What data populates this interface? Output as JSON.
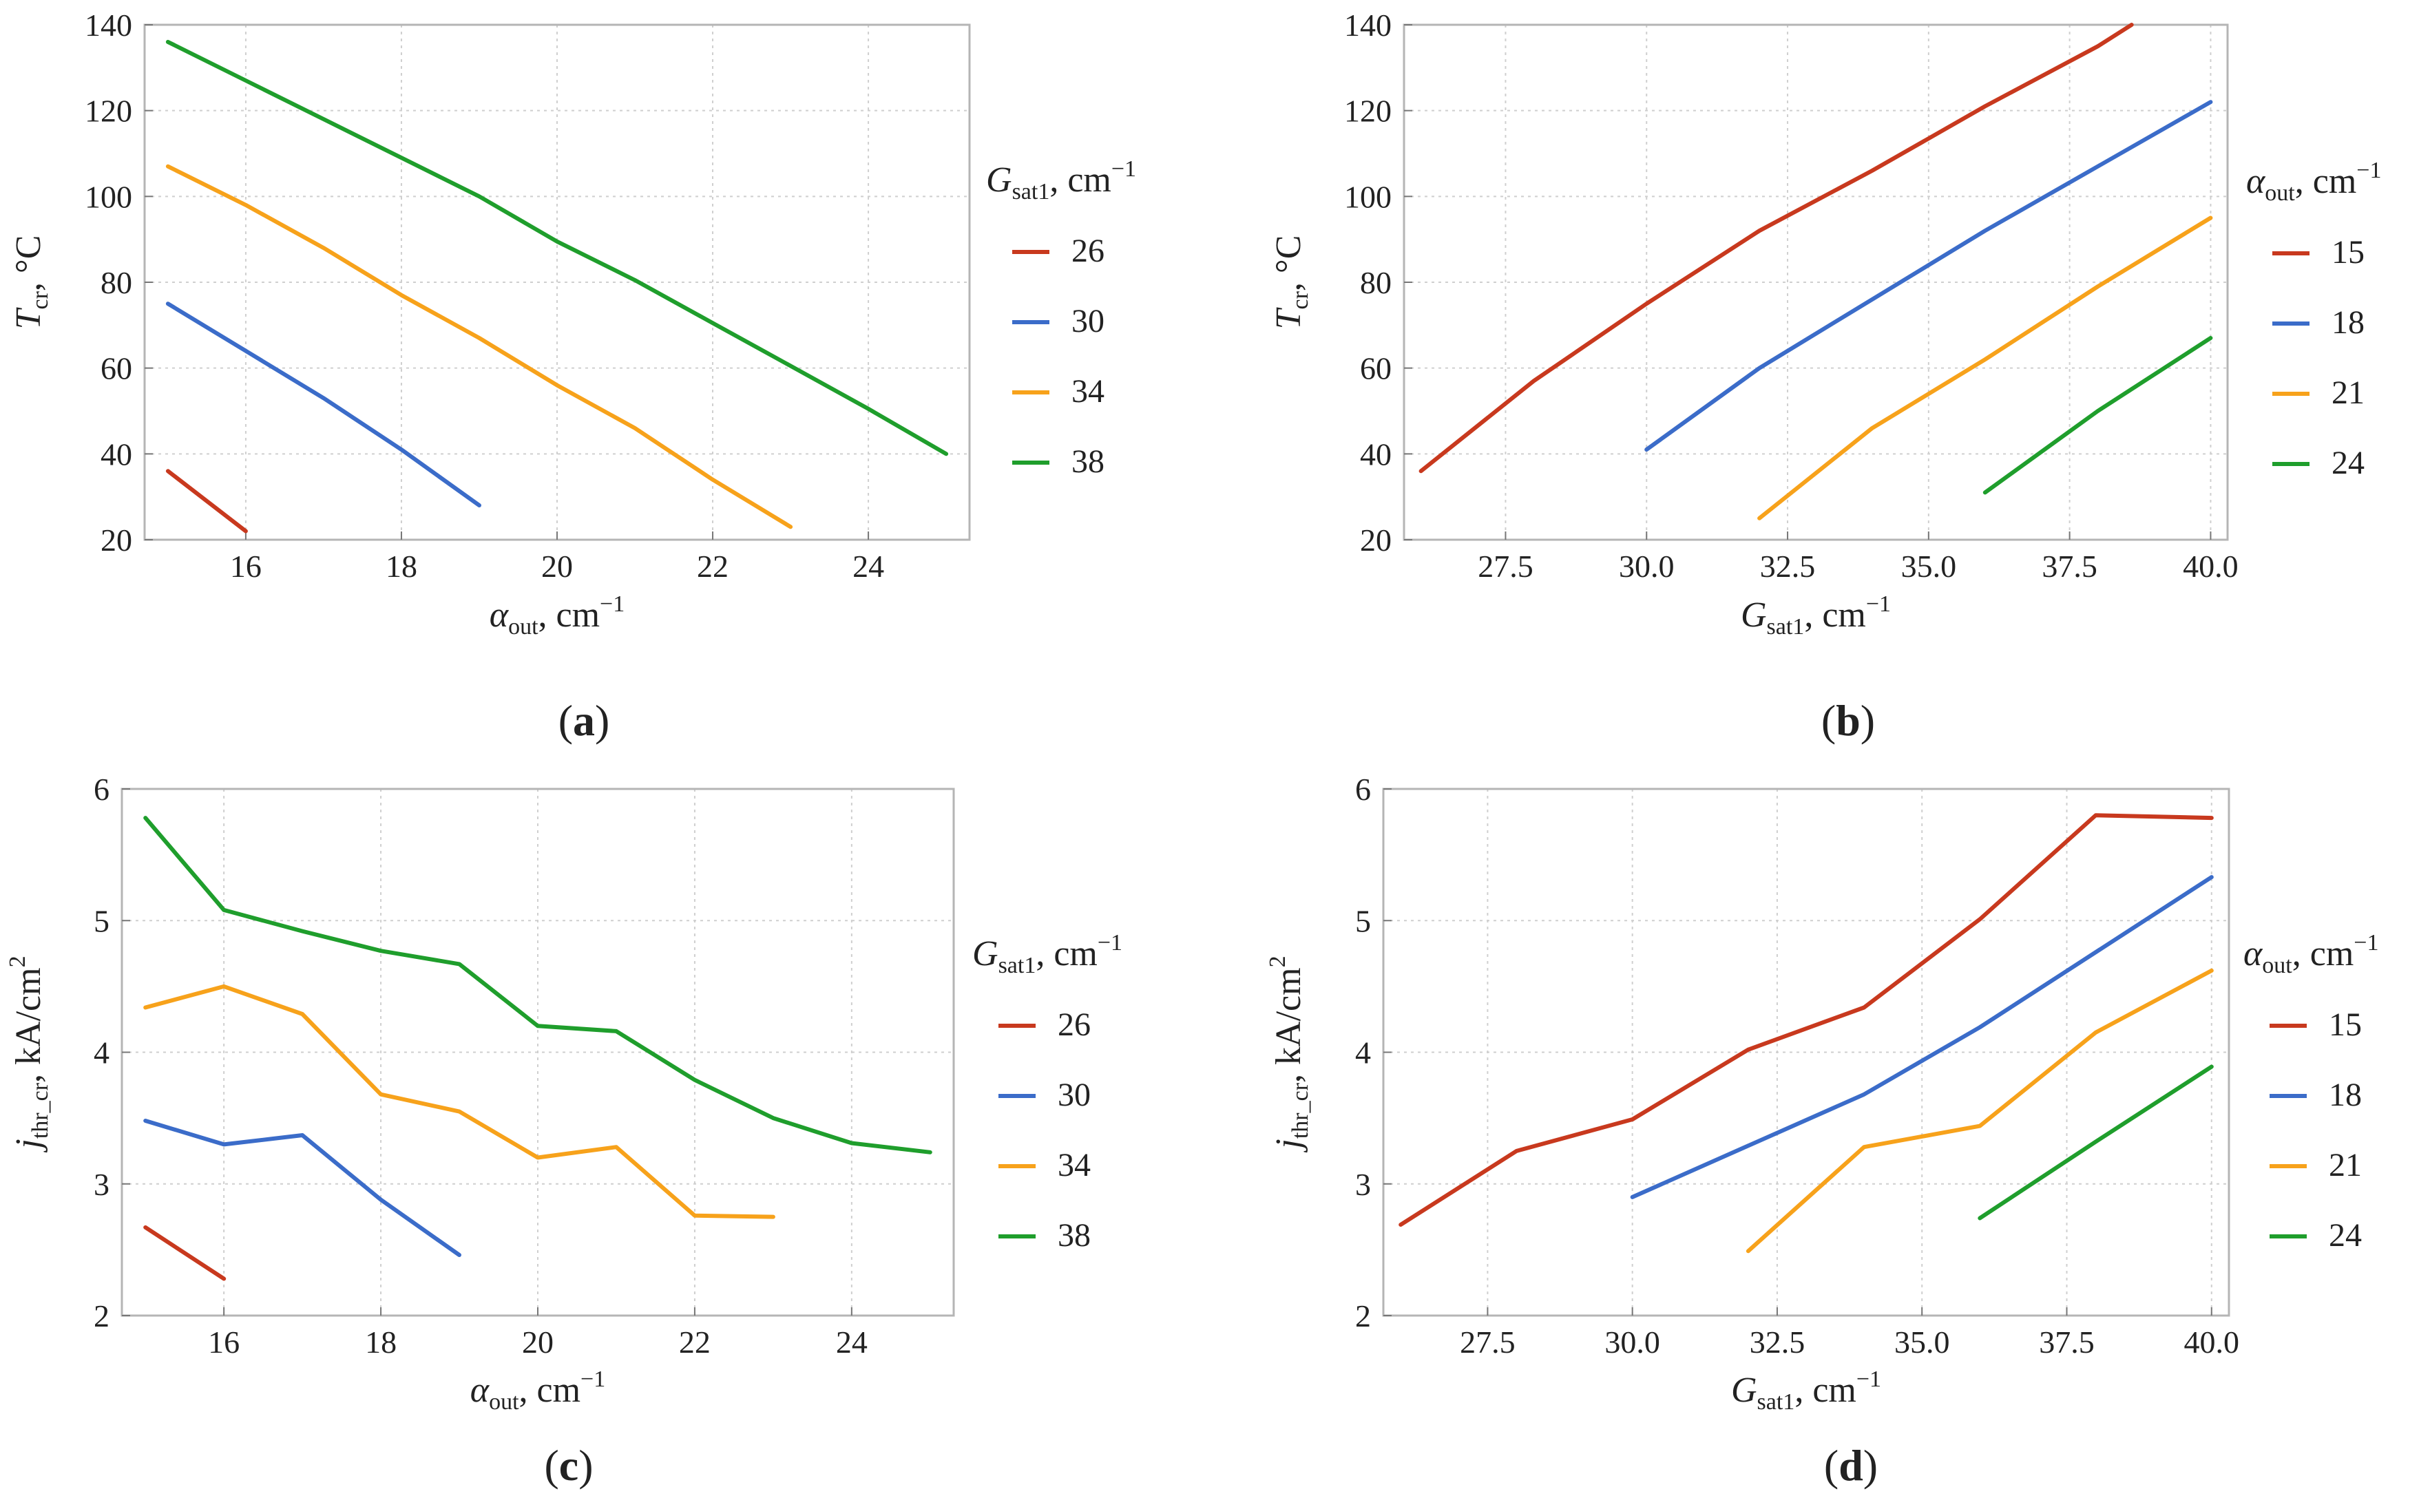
{
  "colors": {
    "red": "#c8391e",
    "blue": "#3b6cc9",
    "orange": "#f7a21b",
    "green": "#1f9e2c",
    "grid": "#cfcfcf",
    "frame": "#b5b5b5"
  },
  "chart_data": [
    {
      "type": "line",
      "panel_label": "(a)",
      "ylabel_main": "T",
      "ylabel_sub": "cr",
      "ylabel_tail": ", °C",
      "xlabel_main": "α",
      "xlabel_sub": "out",
      "xlabel_tail": ", cm",
      "xlabel_sup": "−1",
      "xlim": [
        14.7,
        25.3
      ],
      "ylim": [
        20,
        140
      ],
      "xticks": [
        16,
        18,
        20,
        22,
        24
      ],
      "xtick_labels": [
        "16",
        "18",
        "20",
        "22",
        "24"
      ],
      "yticks": [
        20,
        40,
        60,
        80,
        100,
        120,
        140
      ],
      "ytick_labels": [
        "20",
        "40",
        "60",
        "80",
        "100",
        "120",
        "140"
      ],
      "legend": {
        "title_main": "G",
        "title_sub": "sat1",
        "title_tail": ", cm",
        "title_sup": "−1"
      },
      "series": [
        {
          "name": "26",
          "color": "red",
          "x": [
            15,
            16
          ],
          "y": [
            36,
            22
          ]
        },
        {
          "name": "30",
          "color": "blue",
          "x": [
            15,
            16,
            17,
            18,
            19
          ],
          "y": [
            75,
            64,
            53,
            41,
            28
          ]
        },
        {
          "name": "34",
          "color": "orange",
          "x": [
            15,
            16,
            17,
            18,
            19,
            20,
            21,
            22,
            23
          ],
          "y": [
            107,
            98,
            88,
            77,
            67,
            56,
            46,
            34,
            23
          ]
        },
        {
          "name": "38",
          "color": "green",
          "x": [
            15,
            16,
            17,
            18,
            19,
            20,
            21,
            22,
            23,
            24,
            25
          ],
          "y": [
            136,
            127,
            118,
            109,
            100,
            89.5,
            80.5,
            70.5,
            60.5,
            50.5,
            40
          ]
        }
      ]
    },
    {
      "type": "line",
      "panel_label": "(b)",
      "ylabel_main": "T",
      "ylabel_sub": "cr",
      "ylabel_tail": ", °C",
      "xlabel_main": "G",
      "xlabel_sub": "sat1",
      "xlabel_tail": ", cm",
      "xlabel_sup": "−1",
      "xlim": [
        25.7,
        40.3
      ],
      "ylim": [
        20,
        140
      ],
      "xticks": [
        27.5,
        30,
        32.5,
        35,
        37.5,
        40
      ],
      "xtick_labels": [
        "27.5",
        "30.0",
        "32.5",
        "35.0",
        "37.5",
        "40.0"
      ],
      "yticks": [
        20,
        40,
        60,
        80,
        100,
        120,
        140
      ],
      "ytick_labels": [
        "20",
        "40",
        "60",
        "80",
        "100",
        "120",
        "140"
      ],
      "legend": {
        "title_main": "α",
        "title_sub": "out",
        "title_tail": ", cm",
        "title_sup": "−1"
      },
      "series": [
        {
          "name": "15",
          "color": "red",
          "x": [
            26,
            28,
            30,
            32,
            34,
            36,
            38,
            38.6
          ],
          "y": [
            36,
            57,
            75,
            92,
            106,
            121,
            135,
            140
          ]
        },
        {
          "name": "18",
          "color": "blue",
          "x": [
            30,
            32,
            34,
            36,
            38,
            40
          ],
          "y": [
            41,
            60,
            76,
            92,
            107,
            122
          ]
        },
        {
          "name": "21",
          "color": "orange",
          "x": [
            32,
            34,
            36,
            38,
            40
          ],
          "y": [
            25,
            46,
            62,
            79,
            95
          ]
        },
        {
          "name": "24",
          "color": "green",
          "x": [
            36,
            38,
            40
          ],
          "y": [
            31,
            50,
            67
          ]
        }
      ]
    },
    {
      "type": "line",
      "panel_label": "(c)",
      "ylabel_main": "j",
      "ylabel_sub": "thr_cr",
      "ylabel_tail": ", kA/cm",
      "ylabel_sup": "2",
      "xlabel_main": "α",
      "xlabel_sub": "out",
      "xlabel_tail": ", cm",
      "xlabel_sup": "−1",
      "xlim": [
        14.7,
        25.3
      ],
      "ylim": [
        2,
        6
      ],
      "xticks": [
        16,
        18,
        20,
        22,
        24
      ],
      "xtick_labels": [
        "16",
        "18",
        "20",
        "22",
        "24"
      ],
      "yticks": [
        2,
        3,
        4,
        5,
        6
      ],
      "ytick_labels": [
        "2",
        "3",
        "4",
        "5",
        "6"
      ],
      "legend": {
        "title_main": "G",
        "title_sub": "sat1",
        "title_tail": ", cm",
        "title_sup": "−1"
      },
      "series": [
        {
          "name": "26",
          "color": "red",
          "x": [
            15,
            16
          ],
          "y": [
            2.67,
            2.28
          ]
        },
        {
          "name": "30",
          "color": "blue",
          "x": [
            15,
            16,
            17,
            18,
            19
          ],
          "y": [
            3.48,
            3.3,
            3.37,
            2.88,
            2.46
          ]
        },
        {
          "name": "34",
          "color": "orange",
          "x": [
            15,
            16,
            17,
            18,
            19,
            20,
            21,
            22,
            23
          ],
          "y": [
            4.34,
            4.5,
            4.29,
            3.68,
            3.55,
            3.2,
            3.28,
            2.76,
            2.75
          ]
        },
        {
          "name": "38",
          "color": "green",
          "x": [
            15,
            16,
            17,
            18,
            19,
            20,
            21,
            22,
            23,
            24,
            25
          ],
          "y": [
            5.78,
            5.08,
            4.92,
            4.77,
            4.67,
            4.2,
            4.16,
            3.79,
            3.5,
            3.31,
            3.24
          ]
        }
      ]
    },
    {
      "type": "line",
      "panel_label": "(d)",
      "ylabel_main": "j",
      "ylabel_sub": "thr_cr",
      "ylabel_tail": ", kA/cm",
      "ylabel_sup": "2",
      "xlabel_main": "G",
      "xlabel_sub": "sat1",
      "xlabel_tail": ", cm",
      "xlabel_sup": "−1",
      "xlim": [
        25.7,
        40.3
      ],
      "ylim": [
        2,
        6
      ],
      "xticks": [
        27.5,
        30,
        32.5,
        35,
        37.5,
        40
      ],
      "xtick_labels": [
        "27.5",
        "30.0",
        "32.5",
        "35.0",
        "37.5",
        "40.0"
      ],
      "yticks": [
        2,
        3,
        4,
        5,
        6
      ],
      "ytick_labels": [
        "2",
        "3",
        "4",
        "5",
        "6"
      ],
      "legend": {
        "title_main": "α",
        "title_sub": "out",
        "title_tail": ", cm",
        "title_sup": "−1"
      },
      "series": [
        {
          "name": "15",
          "color": "red",
          "x": [
            26,
            28,
            30,
            32,
            34,
            36,
            38,
            40
          ],
          "y": [
            2.69,
            3.25,
            3.49,
            4.02,
            4.34,
            5.01,
            5.8,
            5.78
          ]
        },
        {
          "name": "18",
          "color": "blue",
          "x": [
            30,
            32,
            34,
            36,
            38,
            40
          ],
          "y": [
            2.9,
            3.29,
            3.68,
            4.19,
            4.76,
            5.33
          ]
        },
        {
          "name": "21",
          "color": "orange",
          "x": [
            32,
            34,
            36,
            38,
            40
          ],
          "y": [
            2.49,
            3.28,
            3.44,
            4.15,
            4.62
          ]
        },
        {
          "name": "24",
          "color": "green",
          "x": [
            36,
            38,
            40
          ],
          "y": [
            2.74,
            3.32,
            3.89
          ]
        }
      ]
    }
  ]
}
